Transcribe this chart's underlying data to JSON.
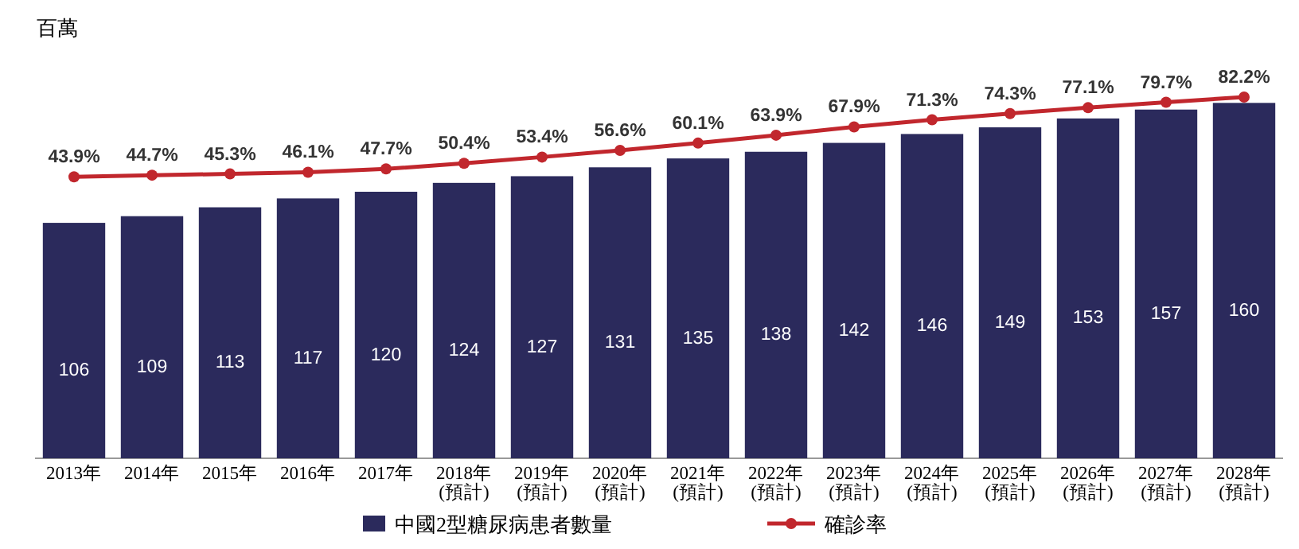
{
  "chart_data": {
    "type": "bar",
    "ylabel": "百萬",
    "categories": [
      "2013年",
      "2014年",
      "2015年",
      "2016年",
      "2017年",
      "2018年\n(預計)",
      "2019年\n(預計)",
      "2020年\n(預計)",
      "2021年\n(預計)",
      "2022年\n(預計)",
      "2023年\n(預計)",
      "2024年\n(預計)",
      "2025年\n(預計)",
      "2026年\n(預計)",
      "2027年\n(預計)",
      "2028年\n(預計)"
    ],
    "data_labels": true,
    "legend": "bottom",
    "series": [
      {
        "name": "中國2型糖尿病患者數量",
        "color": "#2b2a5c",
        "values": [
          106,
          109,
          113,
          117,
          120,
          124,
          127,
          131,
          135,
          138,
          142,
          146,
          149,
          153,
          157,
          160
        ]
      },
      {
        "name": "確診率",
        "type": "line",
        "axis": "y2",
        "color": "#c1272d",
        "marker": "circle",
        "value_labels": [
          "43.9%",
          "44.7%",
          "45.3%",
          "46.1%",
          "47.7%",
          "50.4%",
          "53.4%",
          "56.6%",
          "60.1%",
          "63.9%",
          "67.9%",
          "71.3%",
          "74.3%",
          "77.1%",
          "79.7%",
          "82.2%"
        ],
        "values": [
          43.9,
          44.7,
          45.3,
          46.1,
          47.7,
          50.4,
          53.4,
          56.6,
          60.1,
          63.9,
          67.9,
          71.3,
          74.3,
          77.1,
          79.7,
          82.2
        ]
      }
    ]
  }
}
